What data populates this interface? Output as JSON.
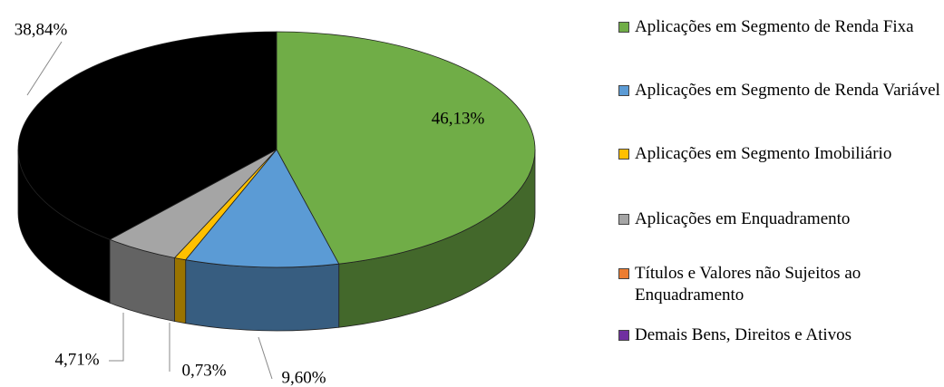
{
  "chart_data": {
    "type": "pie",
    "categories": [
      "Aplicações em Segmento de Renda Fixa",
      "Aplicações em Segmento de Renda Variável",
      "Aplicações em Segmento Imobiliário",
      "Aplicações em Enquadramento",
      "Títulos e Valores não Sujeitos ao Enquadramento",
      "Demais Bens, Direitos e Ativos",
      null
    ],
    "values": [
      46.13,
      9.6,
      0.73,
      4.71,
      0,
      0,
      38.84
    ],
    "value_labels": [
      "46,13%",
      "9,60%",
      "0,73%",
      "4,71%",
      null,
      null,
      "38,84%"
    ],
    "colors": [
      "#70ad47",
      "#5b9bd5",
      "#ffc000",
      "#a5a5a5",
      "#ed7d31",
      "#7030a0",
      "#000000"
    ],
    "legend": "right"
  }
}
